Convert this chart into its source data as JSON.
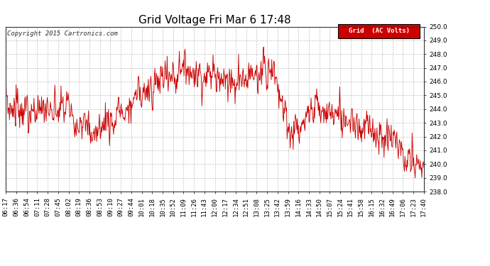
{
  "title": "Grid Voltage Fri Mar 6 17:48",
  "copyright": "Copyright 2015 Cartronics.com",
  "legend_label": "Grid  (AC Volts)",
  "ylim": [
    238.0,
    250.0
  ],
  "yticks": [
    238.0,
    239.0,
    240.0,
    241.0,
    242.0,
    243.0,
    244.0,
    245.0,
    246.0,
    247.0,
    248.0,
    249.0,
    250.0
  ],
  "line_color": "#cc0000",
  "background_color": "#ffffff",
  "grid_color": "#bbbbbb",
  "title_fontsize": 11,
  "tick_fontsize": 6.5,
  "copyright_fontsize": 6.5,
  "legend_fontsize": 6.5,
  "xtick_labels": [
    "06:17",
    "06:36",
    "06:54",
    "07:11",
    "07:28",
    "07:45",
    "08:02",
    "08:19",
    "08:36",
    "08:53",
    "09:10",
    "09:27",
    "09:44",
    "10:01",
    "10:18",
    "10:35",
    "10:52",
    "11:09",
    "11:26",
    "11:43",
    "12:00",
    "12:17",
    "12:34",
    "12:51",
    "13:08",
    "13:25",
    "13:42",
    "13:59",
    "14:16",
    "14:33",
    "14:50",
    "15:07",
    "15:24",
    "15:41",
    "15:58",
    "16:15",
    "16:32",
    "16:49",
    "17:06",
    "17:23",
    "17:40"
  ]
}
